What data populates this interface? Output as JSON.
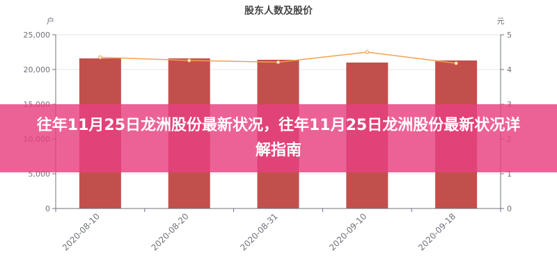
{
  "chart_data": {
    "type": "bar",
    "title": "股东人数及股价",
    "categories": [
      "2020-08-10",
      "2020-08-20",
      "2020-08-31",
      "2020-09-10",
      "2020-09-18"
    ],
    "series": [
      {
        "name": "",
        "type": "bar",
        "axis": "left",
        "values": [
          21600,
          21600,
          21400,
          21000,
          21300
        ]
      },
      {
        "name": "",
        "type": "line",
        "axis": "right",
        "values": [
          4.35,
          4.26,
          4.21,
          4.5,
          4.18
        ]
      }
    ],
    "y_left": {
      "unit": "户",
      "min": 0,
      "max": 25000,
      "ticks": [
        "0",
        "5,000",
        "10,000",
        "15,000",
        "20,000",
        "25,000"
      ]
    },
    "y_right": {
      "unit": "元",
      "min": 0,
      "max": 5,
      "ticks": [
        "0",
        "1",
        "2",
        "3",
        "4",
        "5"
      ]
    },
    "grid": true,
    "colors": {
      "bar": "#c1504d",
      "line": "#f4a04e"
    }
  },
  "overlay": {
    "text": "往年11月25日龙洲股份最新状况，往年11月25日龙洲股份最新状况详解指南"
  }
}
